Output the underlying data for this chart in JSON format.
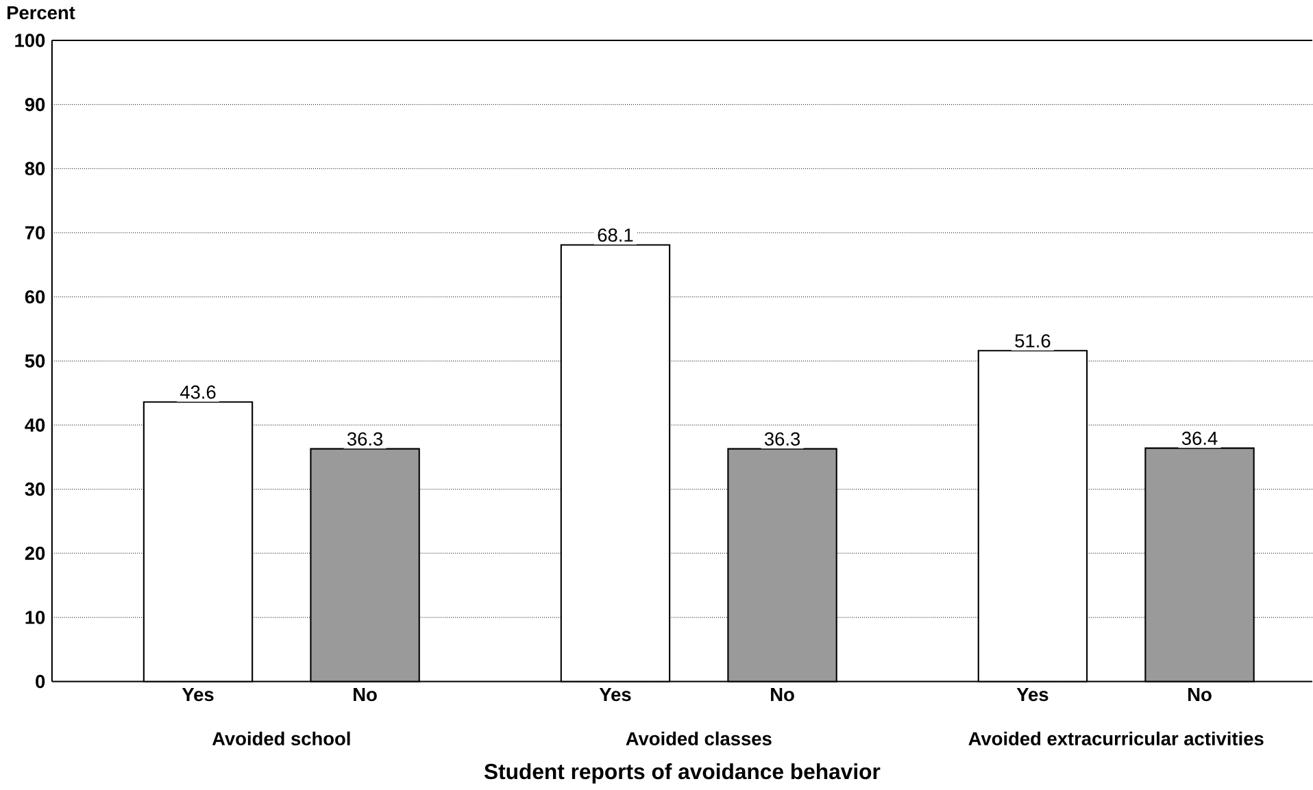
{
  "chart_data": {
    "type": "bar",
    "ylabel": "Percent",
    "xlabel": "Student reports of avoidance behavior",
    "categories": [
      "Avoided school",
      "Avoided classes",
      "Avoided extracurricular activities"
    ],
    "series": [
      {
        "name": "Yes",
        "color": "#ffffff",
        "values": [
          43.6,
          68.1,
          51.6
        ]
      },
      {
        "name": "No",
        "color": "#9a9a9a",
        "values": [
          36.3,
          36.3,
          36.4
        ]
      }
    ],
    "ylim": [
      0,
      100
    ],
    "yticks": [
      0,
      10,
      20,
      30,
      40,
      50,
      60,
      70,
      80,
      90,
      100
    ],
    "grid": "y",
    "data_labels": true
  }
}
